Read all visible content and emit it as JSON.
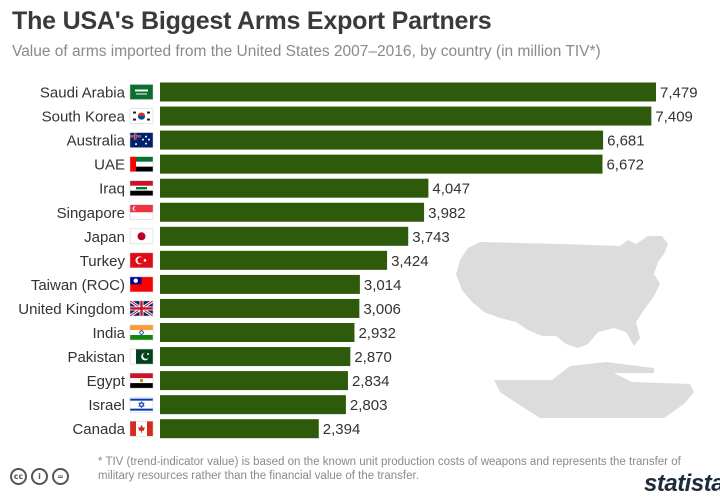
{
  "header": {
    "title": "The USA's Biggest Arms Export Partners",
    "subtitle": "Value of arms imported from the United States 2007–2016, by country (in million TIV*)"
  },
  "chart_data": {
    "type": "bar",
    "orientation": "horizontal",
    "title": "The USA's Biggest Arms Export Partners",
    "subtitle": "Value of arms imported from the United States 2007–2016, by country (in million TIV*)",
    "categories": [
      "Saudi Arabia",
      "South Korea",
      "Australia",
      "UAE",
      "Iraq",
      "Singapore",
      "Japan",
      "Turkey",
      "Taiwan (ROC)",
      "United Kingdom",
      "India",
      "Pakistan",
      "Egypt",
      "Israel",
      "Canada"
    ],
    "values": [
      7479,
      7409,
      6681,
      6672,
      4047,
      3982,
      3743,
      3424,
      3014,
      3006,
      2932,
      2870,
      2834,
      2803,
      2394
    ],
    "value_labels": [
      "7,479",
      "7,409",
      "6,681",
      "6,672",
      "4,047",
      "3,982",
      "3,743",
      "3,424",
      "3,014",
      "3,006",
      "2,932",
      "2,870",
      "2,834",
      "2,803",
      "2,394"
    ],
    "xlim": [
      0,
      7479
    ],
    "grid": false,
    "legend": "none",
    "bar_color": "#2e5a0c"
  },
  "colors": {
    "bar": "#2e5a0c",
    "silhouette": "#dcdcdc",
    "text": "#333333",
    "muted": "#8a8a8a"
  },
  "flags": [
    "saudi-arabia-flag-icon",
    "south-korea-flag-icon",
    "australia-flag-icon",
    "uae-flag-icon",
    "iraq-flag-icon",
    "singapore-flag-icon",
    "japan-flag-icon",
    "turkey-flag-icon",
    "taiwan-flag-icon",
    "united-kingdom-flag-icon",
    "india-flag-icon",
    "pakistan-flag-icon",
    "egypt-flag-icon",
    "israel-flag-icon",
    "canada-flag-icon"
  ],
  "footnote": "* TIV (trend-indicator value) is based on the known unit production costs of weapons and represents the transfer of military resources rather than the financial value of the transfer.",
  "license_icons": [
    "cc-icon",
    "attribution-icon",
    "no-derivatives-icon"
  ],
  "brand": "statista"
}
